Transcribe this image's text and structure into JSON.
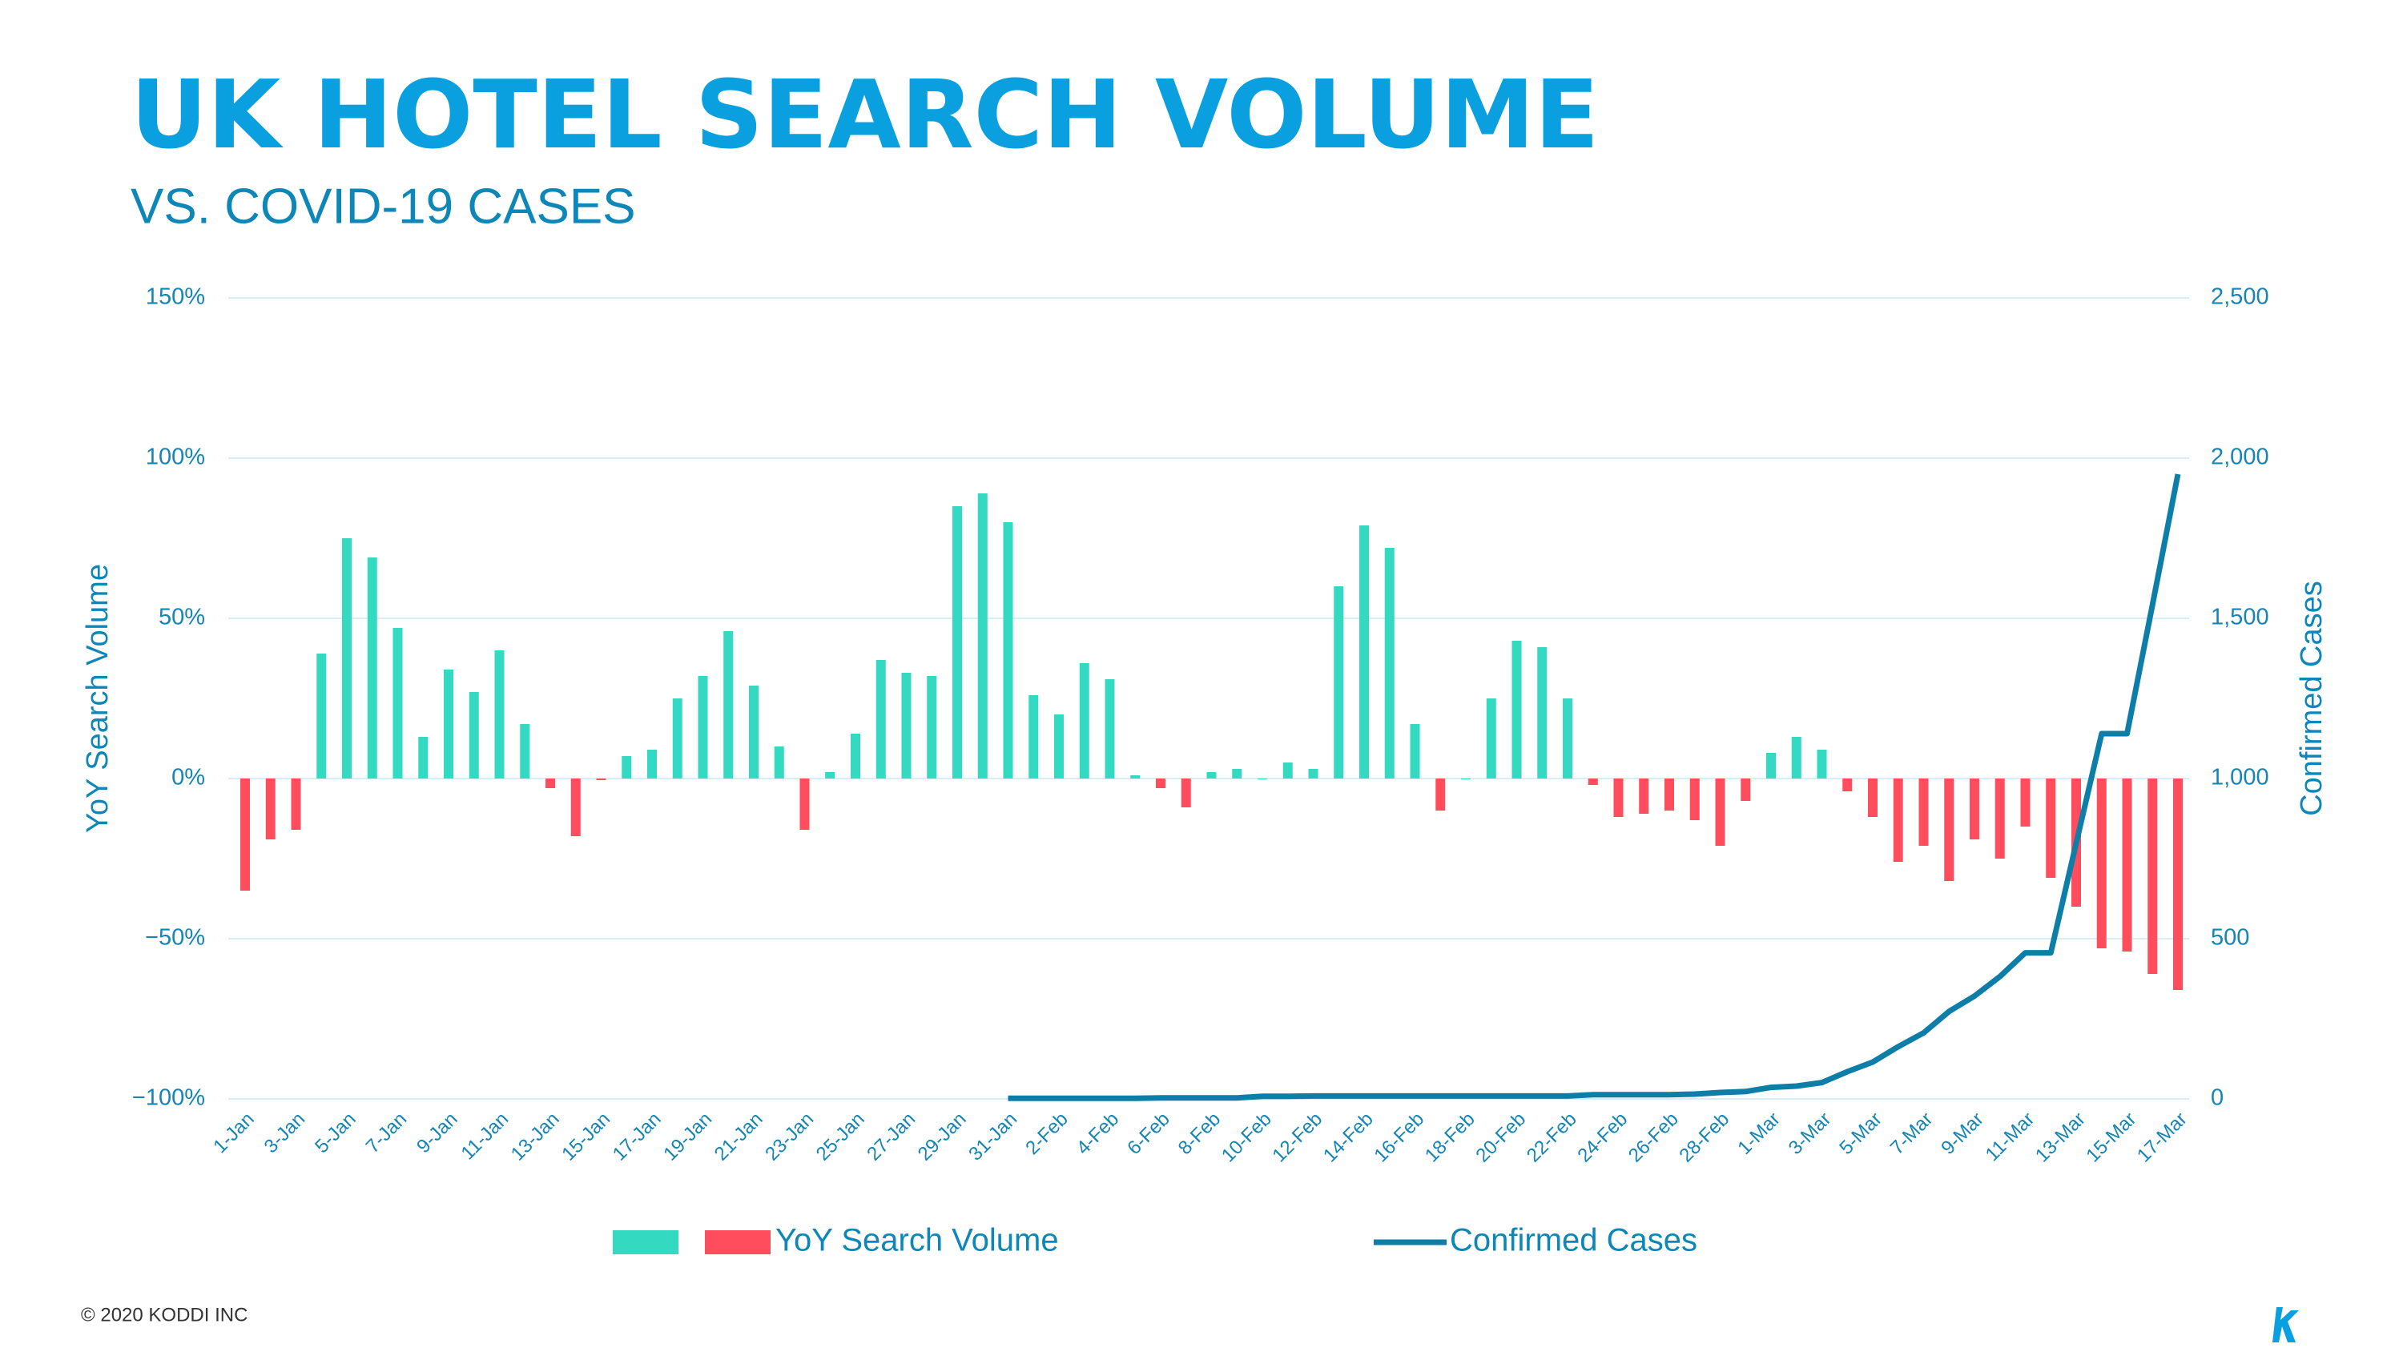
{
  "chart_data": {
    "type": "bar",
    "title": "UK HOTEL SEARCH VOLUME",
    "subtitle": "VS. COVID-19 CASES",
    "y_label": "YoY Search Volume",
    "y2_label": "Confirmed Cases",
    "footer": "© 2020 KODDI INC",
    "categories": [
      "1-Jan",
      null,
      "3-Jan",
      null,
      "5-Jan",
      null,
      "7-Jan",
      null,
      "9-Jan",
      null,
      "11-Jan",
      null,
      "13-Jan",
      null,
      "15-Jan",
      null,
      "17-Jan",
      null,
      "19-Jan",
      null,
      "21-Jan",
      null,
      "23-Jan",
      null,
      "25-Jan",
      null,
      "27-Jan",
      null,
      "29-Jan",
      null,
      "31-Jan",
      null,
      "2-Feb",
      null,
      "4-Feb",
      null,
      "6-Feb",
      null,
      "8-Feb",
      null,
      "10-Feb",
      null,
      "12-Feb",
      null,
      "14-Feb",
      null,
      "16-Feb",
      null,
      "18-Feb",
      null,
      "20-Feb",
      null,
      "22-Feb",
      null,
      "24-Feb",
      null,
      "26-Feb",
      null,
      "28-Feb",
      null,
      "1-Mar",
      null,
      "3-Mar",
      null,
      "5-Mar",
      null,
      "7-Mar",
      null,
      "9-Mar",
      null,
      "11-Mar",
      null,
      "13-Mar",
      null,
      "15-Mar",
      null,
      "17-Mar"
    ],
    "series": [
      {
        "name": "YoY Search Volume",
        "type": "bar",
        "color": "#33d9c1",
        "negative_color": "#ff4d5e",
        "values": [
          -35,
          -19,
          -16,
          39,
          75,
          69,
          47,
          13,
          34,
          27,
          40,
          17,
          -3,
          -18,
          -0.5,
          7,
          9,
          25,
          32,
          46,
          29,
          10,
          -16,
          2,
          14,
          37,
          33,
          32,
          85,
          89,
          80,
          26,
          20,
          36,
          31,
          1,
          -3,
          -9,
          2,
          3,
          0,
          5,
          3,
          60,
          79,
          72,
          17,
          -10,
          0,
          25,
          43,
          41,
          25,
          -2,
          -12,
          -11,
          -10,
          -13,
          -21,
          -7,
          8,
          13,
          9,
          -4,
          -12,
          -26,
          -21,
          -32,
          -19,
          -25,
          -15,
          -31,
          -40,
          -53,
          -54,
          -61,
          -66
        ]
      },
      {
        "name": "Confirmed Cases",
        "type": "line",
        "axis": "y2",
        "color": "#0d7ea8",
        "values": [
          null,
          null,
          null,
          null,
          null,
          null,
          null,
          null,
          null,
          null,
          null,
          null,
          null,
          null,
          null,
          null,
          null,
          null,
          null,
          null,
          null,
          null,
          null,
          null,
          null,
          null,
          null,
          null,
          null,
          null,
          2,
          2,
          2,
          2,
          2,
          2,
          3,
          3,
          3,
          3,
          8,
          8,
          9,
          9,
          9,
          9,
          9,
          9,
          9,
          9,
          9,
          9,
          9,
          13,
          13,
          13,
          13,
          15,
          20,
          23,
          36,
          40,
          51,
          85,
          115,
          163,
          206,
          273,
          321,
          382,
          456,
          456,
          798,
          1140,
          1140,
          1543,
          1950
        ]
      }
    ],
    "ylim": [
      -100,
      150
    ],
    "yticks": [
      {
        "value": -100,
        "label": "−100%"
      },
      {
        "value": -50,
        "label": "−50%"
      },
      {
        "value": 0,
        "label": "0%"
      },
      {
        "value": 50,
        "label": "50%"
      },
      {
        "value": 100,
        "label": "100%"
      },
      {
        "value": 150,
        "label": "150%"
      }
    ],
    "y2lim": [
      0,
      2500
    ],
    "y2ticks": [
      0,
      500,
      {
        "value": 1000,
        "label": "1,000"
      },
      {
        "value": 1500,
        "label": "1,500"
      },
      {
        "value": 2000,
        "label": "2,000"
      },
      {
        "value": 2500,
        "label": "2,500"
      }
    ],
    "grid": true
  }
}
